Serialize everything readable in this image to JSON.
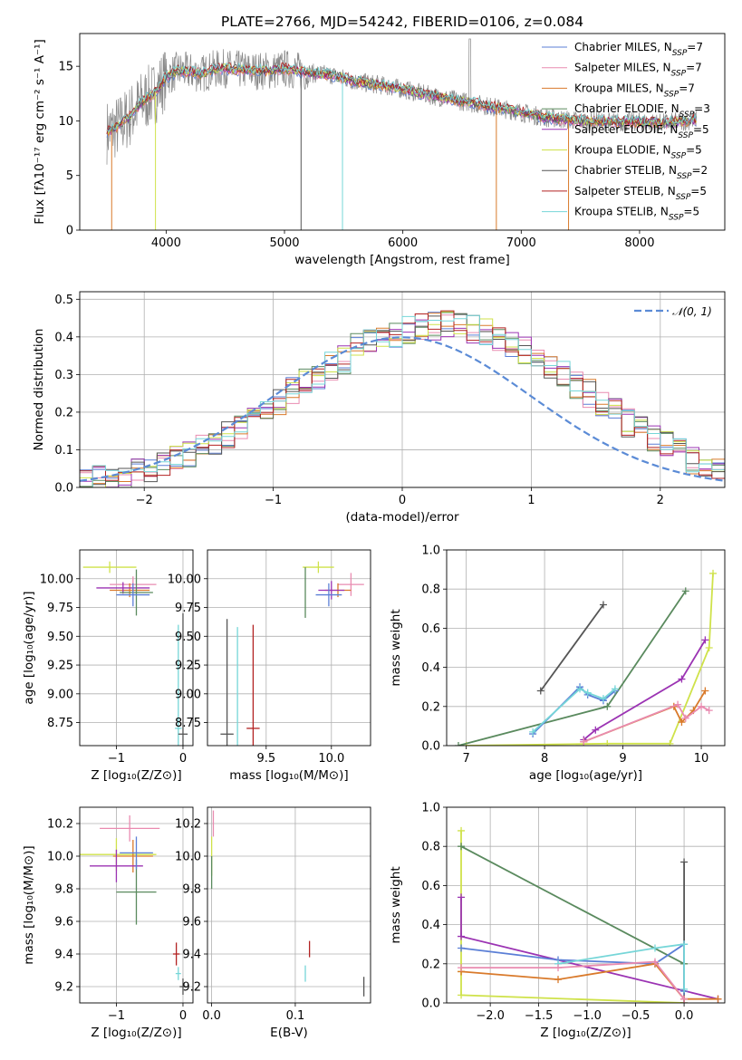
{
  "figure": {
    "title": "PLATE=2766, MJD=54242, FIBERID=0106, z=0.084"
  },
  "colors": {
    "Chabrier MILES": "#5b7fd6",
    "Salpeter MILES": "#e98bb0",
    "Kroupa MILES": "#d97a2b",
    "Chabrier ELODIE": "#5a8a5e",
    "Salpeter ELODIE": "#9b33b3",
    "Kroupa ELODIE": "#cfe24a",
    "Chabrier STELIB": "#555555",
    "Salpeter STELIB": "#b22222",
    "Kroupa STELIB": "#76d6d8",
    "data": "#888888",
    "normal": "#5b8bd6"
  },
  "chart_data": [
    {
      "id": "spectrum",
      "type": "line",
      "title": "PLATE=2766, MJD=54242, FIBERID=0106, z=0.084",
      "xlabel": "wavelength [Angstrom, rest frame]",
      "ylabel": "Flux [fλ10⁻¹⁷ erg cm⁻² s⁻¹ A⁻¹]",
      "xlim": [
        3270,
        8720
      ],
      "ylim": [
        0,
        18
      ],
      "xticks": [
        4000,
        5000,
        6000,
        7000,
        8000
      ],
      "yticks": [
        0,
        5,
        10,
        15
      ],
      "legend_position": "top-right",
      "legend": [
        "Chabrier MILES, N_SSP=7",
        "Salpeter MILES, N_SSP=7",
        "Kroupa MILES, N_SSP=7",
        "Chabrier ELODIE, N_SSP=3",
        "Salpeter ELODIE, N_SSP=5",
        "Kroupa ELODIE, N_SSP=5",
        "Chabrier STELIB, N_SSP=2",
        "Salpeter STELIB, N_SSP=5",
        "Kroupa STELIB, N_SSP=5"
      ],
      "legend_keys": [
        "Chabrier MILES",
        "Salpeter MILES",
        "Kroupa MILES",
        "Chabrier ELODIE",
        "Salpeter ELODIE",
        "Kroupa ELODIE",
        "Chabrier STELIB",
        "Salpeter STELIB",
        "Kroupa STELIB"
      ],
      "model_curve": [
        [
          3500,
          9.0
        ],
        [
          3600,
          9.5
        ],
        [
          3700,
          10.5
        ],
        [
          3800,
          11.8
        ],
        [
          3900,
          12.5
        ],
        [
          4000,
          14.0
        ],
        [
          4100,
          14.6
        ],
        [
          4200,
          14.5
        ],
        [
          4300,
          14.3
        ],
        [
          4400,
          14.7
        ],
        [
          4500,
          14.8
        ],
        [
          4700,
          14.6
        ],
        [
          4900,
          14.6
        ],
        [
          5000,
          14.8
        ],
        [
          5200,
          14.4
        ],
        [
          5400,
          14.2
        ],
        [
          5600,
          13.6
        ],
        [
          5800,
          13.3
        ],
        [
          6000,
          12.9
        ],
        [
          6200,
          12.4
        ],
        [
          6400,
          12.0
        ],
        [
          6600,
          11.6
        ],
        [
          6800,
          11.2
        ],
        [
          7000,
          10.8
        ],
        [
          7200,
          10.3
        ],
        [
          7500,
          10.0
        ],
        [
          7800,
          9.9
        ],
        [
          8000,
          9.9
        ],
        [
          8200,
          9.8
        ],
        [
          8400,
          10.0
        ],
        [
          8480,
          10.1
        ]
      ]
    },
    {
      "id": "residuals",
      "type": "bar",
      "xlabel": "(data-model)/error",
      "ylabel": "Normed distribution",
      "xlim": [
        -2.5,
        2.5
      ],
      "ylim": [
        0,
        0.52
      ],
      "xticks": [
        -2,
        -1,
        0,
        1,
        2
      ],
      "yticks": [
        0.0,
        0.1,
        0.2,
        0.3,
        0.4,
        0.5
      ],
      "legend": [
        "𝒩(0, 1)"
      ],
      "legend_position": "top-right",
      "hist_edges_start": -2.5,
      "hist_bin_width": 0.1,
      "hist_base": [
        0.015,
        0.02,
        0.025,
        0.03,
        0.04,
        0.05,
        0.06,
        0.075,
        0.09,
        0.1,
        0.12,
        0.14,
        0.16,
        0.18,
        0.2,
        0.23,
        0.26,
        0.28,
        0.3,
        0.32,
        0.34,
        0.37,
        0.38,
        0.39,
        0.41,
        0.42,
        0.43,
        0.43,
        0.43,
        0.43,
        0.42,
        0.41,
        0.4,
        0.38,
        0.36,
        0.34,
        0.32,
        0.3,
        0.27,
        0.25,
        0.22,
        0.2,
        0.17,
        0.15,
        0.13,
        0.11,
        0.09,
        0.07,
        0.06,
        0.05
      ]
    },
    {
      "id": "age-vs-Z",
      "type": "scatter",
      "xlabel": "Z [log₁₀(Z/Z⊙)]",
      "ylabel": "age  [log₁₀(age/yr)]",
      "xlim": [
        -1.55,
        0.15
      ],
      "ylim": [
        8.55,
        10.25
      ],
      "xticks": [
        -1,
        0
      ],
      "yticks": [
        8.75,
        9.0,
        9.25,
        9.5,
        9.75,
        10.0
      ],
      "points": [
        {
          "model": "Kroupa ELODIE",
          "x": -1.1,
          "y": 10.1,
          "xerr": 0.4,
          "yerr": 0.05
        },
        {
          "model": "Salpeter MILES",
          "x": -0.75,
          "y": 9.95,
          "xerr": 0.35,
          "yerr": 0.07
        },
        {
          "model": "Kroupa MILES",
          "x": -0.8,
          "y": 9.9,
          "xerr": 0.3,
          "yerr": 0.06
        },
        {
          "model": "Salpeter ELODIE",
          "x": -0.9,
          "y": 9.92,
          "xerr": 0.4,
          "yerr": 0.05
        },
        {
          "model": "Chabrier ELODIE",
          "x": -0.7,
          "y": 9.88,
          "xerr": 0.25,
          "yerr": 0.2
        },
        {
          "model": "Chabrier MILES",
          "x": -0.75,
          "y": 9.86,
          "xerr": 0.25,
          "yerr": 0.1
        },
        {
          "model": "Kroupa STELIB",
          "x": -0.07,
          "y": 8.7,
          "xerr": 0.05,
          "yerr": 0.9
        },
        {
          "model": "Chabrier STELIB",
          "x": 0.0,
          "y": 8.65,
          "xerr": 0.07,
          "yerr": 1.05
        }
      ]
    },
    {
      "id": "age-vs-mass",
      "type": "scatter",
      "xlabel": "mass [log₁₀(M/M⊙)]",
      "ylabel": "",
      "xlim": [
        9.05,
        10.3
      ],
      "ylim": [
        8.55,
        10.25
      ],
      "xticks": [
        9.5,
        10.0
      ],
      "yticks": [
        8.75,
        9.0,
        9.25,
        9.5,
        9.75,
        10.0
      ],
      "points": [
        {
          "model": "Kroupa ELODIE",
          "x": 9.9,
          "y": 10.1,
          "xerr": 0.12,
          "yerr": 0.05
        },
        {
          "model": "Salpeter MILES",
          "x": 10.15,
          "y": 9.95,
          "xerr": 0.1,
          "yerr": 0.1
        },
        {
          "model": "Kroupa MILES",
          "x": 10.05,
          "y": 9.9,
          "xerr": 0.1,
          "yerr": 0.06
        },
        {
          "model": "Salpeter ELODIE",
          "x": 10.0,
          "y": 9.9,
          "xerr": 0.1,
          "yerr": 0.08
        },
        {
          "model": "Chabrier ELODIE",
          "x": 9.8,
          "y": 9.88,
          "xerr": 0.0,
          "yerr": 0.22
        },
        {
          "model": "Chabrier MILES",
          "x": 9.98,
          "y": 9.86,
          "xerr": 0.1,
          "yerr": 0.1
        },
        {
          "model": "Salpeter STELIB",
          "x": 9.4,
          "y": 8.7,
          "xerr": 0.05,
          "yerr": 0.9
        },
        {
          "model": "Kroupa STELIB",
          "x": 9.28,
          "y": 8.68,
          "xerr": 0.0,
          "yerr": 0.9
        },
        {
          "model": "Chabrier STELIB",
          "x": 9.2,
          "y": 8.65,
          "xerr": 0.05,
          "yerr": 1.0
        }
      ]
    },
    {
      "id": "mass-weight-vs-age",
      "type": "line",
      "xlabel": "age  [log₁₀(age/yr)]",
      "ylabel": "mass weight",
      "xlim": [
        6.75,
        10.3
      ],
      "ylim": [
        0,
        1.0
      ],
      "xticks": [
        7,
        8,
        9,
        10
      ],
      "yticks": [
        0.0,
        0.2,
        0.4,
        0.6,
        0.8,
        1.0
      ],
      "series": [
        {
          "model": "Kroupa ELODIE",
          "x": [
            7.0,
            8.8,
            9.6,
            10.1,
            10.15
          ],
          "y": [
            0.0,
            0.01,
            0.01,
            0.5,
            0.88
          ]
        },
        {
          "model": "Chabrier ELODIE",
          "x": [
            6.9,
            8.8,
            9.8
          ],
          "y": [
            0.0,
            0.2,
            0.79
          ]
        },
        {
          "model": "Salpeter ELODIE",
          "x": [
            8.5,
            8.65,
            9.75,
            10.05
          ],
          "y": [
            0.03,
            0.08,
            0.34,
            0.54
          ]
        },
        {
          "model": "Chabrier STELIB",
          "x": [
            7.95,
            8.75
          ],
          "y": [
            0.28,
            0.72
          ]
        },
        {
          "model": "Chabrier MILES",
          "x": [
            7.85,
            8.45,
            8.55,
            8.75,
            8.9
          ],
          "y": [
            0.06,
            0.3,
            0.26,
            0.23,
            0.28
          ]
        },
        {
          "model": "Kroupa STELIB",
          "x": [
            7.85,
            8.45,
            8.55,
            8.75,
            8.9
          ],
          "y": [
            0.07,
            0.29,
            0.27,
            0.24,
            0.29
          ]
        },
        {
          "model": "Kroupa MILES",
          "x": [
            8.5,
            9.65,
            9.75,
            9.9,
            10.05
          ],
          "y": [
            0.02,
            0.2,
            0.12,
            0.18,
            0.28
          ]
        },
        {
          "model": "Salpeter MILES",
          "x": [
            8.5,
            9.7,
            9.8,
            10.0,
            10.1
          ],
          "y": [
            0.02,
            0.21,
            0.14,
            0.2,
            0.18
          ]
        }
      ]
    },
    {
      "id": "mass-vs-Z",
      "type": "scatter",
      "xlabel": "Z [log₁₀(Z/Z⊙)]",
      "ylabel": "mass [log₁₀(M/M⊙)]",
      "xlim": [
        -1.55,
        0.15
      ],
      "ylim": [
        9.1,
        10.3
      ],
      "xticks": [
        -1,
        0
      ],
      "yticks": [
        9.2,
        9.4,
        9.6,
        9.8,
        10.0,
        10.2
      ],
      "points": [
        {
          "model": "Salpeter MILES",
          "x": -0.8,
          "y": 10.17,
          "xerr": 0.45,
          "yerr": 0.08
        },
        {
          "model": "Kroupa ELODIE",
          "x": -1.0,
          "y": 10.01,
          "xerr": 0.6,
          "yerr": 0.1
        },
        {
          "model": "Kroupa MILES",
          "x": -0.75,
          "y": 10.0,
          "xerr": 0.3,
          "yerr": 0.1
        },
        {
          "model": "Salpeter ELODIE",
          "x": -1.0,
          "y": 9.94,
          "xerr": 0.4,
          "yerr": 0.1
        },
        {
          "model": "Chabrier ELODIE",
          "x": -0.7,
          "y": 9.78,
          "xerr": 0.3,
          "yerr": 0.2
        },
        {
          "model": "Chabrier MILES",
          "x": -0.7,
          "y": 10.02,
          "xerr": 0.25,
          "yerr": 0.1
        },
        {
          "model": "Salpeter STELIB",
          "x": -0.1,
          "y": 9.4,
          "xerr": 0.05,
          "yerr": 0.07
        },
        {
          "model": "Kroupa STELIB",
          "x": -0.07,
          "y": 9.28,
          "xerr": 0.04,
          "yerr": 0.04
        },
        {
          "model": "Chabrier STELIB",
          "x": 0.0,
          "y": 9.2,
          "xerr": 0.05,
          "yerr": 0.05
        }
      ]
    },
    {
      "id": "mass-vs-ebv",
      "type": "scatter",
      "xlabel": "E(B-V)",
      "ylabel": "",
      "xlim": [
        -0.005,
        0.19
      ],
      "ylim": [
        9.1,
        10.3
      ],
      "xticks": [
        0.0,
        0.1
      ],
      "yticks": [
        9.2,
        9.4,
        9.6,
        9.8,
        10.0,
        10.2
      ],
      "points": [
        {
          "model": "Salpeter MILES",
          "x": 0.002,
          "y": 10.2,
          "xerr": 0.0,
          "yerr": 0.08
        },
        {
          "model": "Kroupa ELODIE",
          "x": 0.0,
          "y": 10.0,
          "xerr": 0.0,
          "yerr": 0.12
        },
        {
          "model": "Chabrier ELODIE",
          "x": 0.0,
          "y": 9.9,
          "xerr": 0.0,
          "yerr": 0.1
        },
        {
          "model": "Salpeter STELIB",
          "x": 0.117,
          "y": 9.43,
          "xerr": 0.0,
          "yerr": 0.05
        },
        {
          "model": "Kroupa STELIB",
          "x": 0.112,
          "y": 9.28,
          "xerr": 0.0,
          "yerr": 0.05
        },
        {
          "model": "Chabrier STELIB",
          "x": 0.182,
          "y": 9.2,
          "xerr": 0.0,
          "yerr": 0.06
        }
      ]
    },
    {
      "id": "mass-weight-vs-Z",
      "type": "line",
      "xlabel": "Z [log₁₀(Z/Z⊙)]",
      "ylabel": "mass weight",
      "xlim": [
        -2.45,
        0.42
      ],
      "ylim": [
        0,
        1.0
      ],
      "xticks": [
        -2.0,
        -1.5,
        -1.0,
        -0.5,
        0.0
      ],
      "yticks": [
        0.0,
        0.2,
        0.4,
        0.6,
        0.8,
        1.0
      ],
      "series": [
        {
          "model": "Kroupa ELODIE",
          "x": [
            -2.3,
            -2.3,
            -2.3,
            0.0
          ],
          "y": [
            0.88,
            0.16,
            0.04,
            0.0
          ]
        },
        {
          "model": "Chabrier ELODIE",
          "x": [
            -2.3,
            0.0
          ],
          "y": [
            0.8,
            0.2
          ]
        },
        {
          "model": "Salpeter ELODIE",
          "x": [
            -2.3,
            -2.3,
            0.35
          ],
          "y": [
            0.54,
            0.34,
            0.02
          ]
        },
        {
          "model": "Chabrier STELIB",
          "x": [
            0.0,
            0.0
          ],
          "y": [
            0.72,
            0.0
          ]
        },
        {
          "model": "Chabrier MILES",
          "x": [
            -2.3,
            -1.3,
            -0.3,
            0.0,
            0.0
          ],
          "y": [
            0.28,
            0.22,
            0.2,
            0.3,
            0.06
          ]
        },
        {
          "model": "Kroupa STELIB",
          "x": [
            -1.3,
            -0.3,
            0.0,
            0.0
          ],
          "y": [
            0.2,
            0.28,
            0.3,
            0.07
          ]
        },
        {
          "model": "Kroupa MILES",
          "x": [
            -2.3,
            -1.3,
            -0.3,
            0.0,
            0.35
          ],
          "y": [
            0.16,
            0.12,
            0.2,
            0.02,
            0.02
          ]
        },
        {
          "model": "Salpeter MILES",
          "x": [
            -2.3,
            -1.3,
            -0.3,
            0.0
          ],
          "y": [
            0.18,
            0.18,
            0.21,
            0.02
          ]
        }
      ]
    }
  ]
}
